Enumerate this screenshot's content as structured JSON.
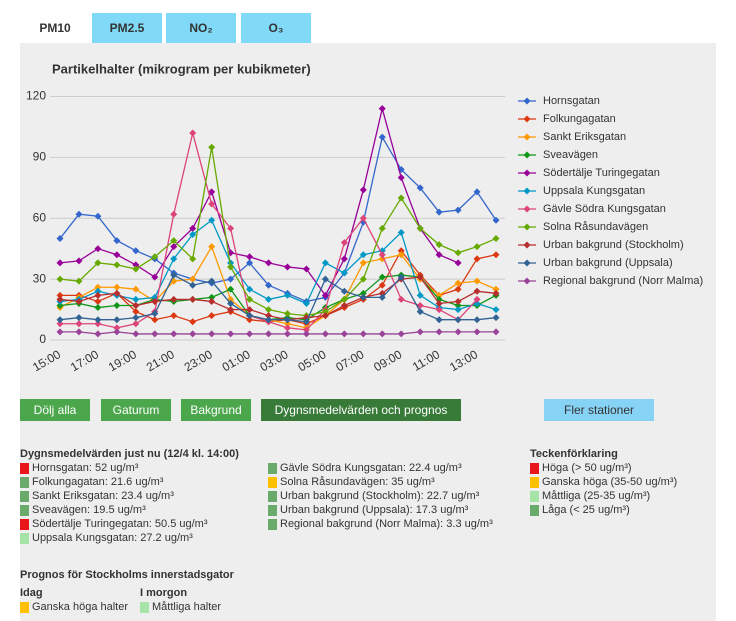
{
  "tabs": [
    "PM10",
    "PM2.5",
    "NO₂",
    "O₃"
  ],
  "chart_data": {
    "type": "line",
    "title": "Partikelhalter (mikrogram per kubikmeter)",
    "categories": [
      "15:00",
      null,
      "17:00",
      null,
      "19:00",
      null,
      "21:00",
      null,
      "23:00",
      null,
      "01:00",
      null,
      "03:00",
      null,
      "05:00",
      null,
      "07:00",
      null,
      "09:00",
      null,
      "11:00",
      null,
      "13:00",
      null
    ],
    "ylim": [
      0,
      120
    ],
    "yticks": [
      0,
      30,
      60,
      90,
      120
    ],
    "grid": true,
    "legend": "right",
    "series": [
      {
        "name": "Hornsgatan",
        "color": "#3366cc",
        "values": [
          50,
          62,
          61,
          49,
          44,
          40,
          33,
          30,
          28,
          30,
          38,
          27,
          23,
          19,
          21,
          33,
          58,
          100,
          84,
          75,
          63,
          64,
          73,
          59
        ]
      },
      {
        "name": "Folkungagatan",
        "color": "#dc3912",
        "values": [
          22,
          22,
          19,
          23,
          14,
          10,
          12,
          9,
          12,
          14,
          10,
          9,
          10,
          8,
          12,
          16,
          20,
          27,
          44,
          32,
          22,
          25,
          40,
          42
        ]
      },
      {
        "name": "Sankt Eriksgatan",
        "color": "#ff9900",
        "values": [
          16,
          21,
          26,
          26,
          25,
          19,
          29,
          30,
          46,
          20,
          12,
          10,
          8,
          6,
          12,
          20,
          38,
          40,
          42,
          30,
          22,
          28,
          29,
          25
        ]
      },
      {
        "name": "Sveavägen",
        "color": "#109618",
        "values": [
          17,
          18,
          16,
          17,
          17,
          20,
          19,
          20,
          21,
          25,
          12,
          10,
          11,
          10,
          16,
          20,
          23,
          31,
          32,
          31,
          20,
          17,
          17,
          22
        ]
      },
      {
        "name": "Södertälje Turingegatan",
        "color": "#990099",
        "values": [
          38,
          39,
          45,
          42,
          37,
          31,
          46,
          55,
          73,
          43,
          41,
          38,
          36,
          35,
          22,
          40,
          74,
          114,
          80,
          55,
          42,
          38,
          null,
          null
        ]
      },
      {
        "name": "Uppsala Kungsgatan",
        "color": "#0099c6",
        "values": [
          19,
          20,
          24,
          22,
          20,
          21,
          40,
          52,
          59,
          38,
          25,
          20,
          22,
          18,
          38,
          33,
          42,
          44,
          53,
          22,
          16,
          15,
          18,
          15
        ]
      },
      {
        "name": "Gävle Södra Kungsgatan",
        "color": "#dd4477",
        "values": [
          8,
          8,
          8,
          6,
          8,
          14,
          62,
          102,
          67,
          55,
          12,
          9,
          6,
          5,
          15,
          48,
          60,
          42,
          20,
          17,
          15,
          10,
          20,
          null
        ]
      },
      {
        "name": "Solna Råsundavägen",
        "color": "#66aa00",
        "values": [
          30,
          29,
          38,
          37,
          35,
          41,
          49,
          40,
          95,
          36,
          20,
          15,
          13,
          12,
          14,
          20,
          30,
          55,
          70,
          55,
          47,
          43,
          46,
          50
        ]
      },
      {
        "name": "Urban bakgrund (Stockholm)",
        "color": "#b82e2e",
        "values": [
          20,
          19,
          22,
          23,
          17,
          19,
          20,
          20,
          19,
          15,
          15,
          12,
          10,
          11,
          12,
          17,
          21,
          23,
          30,
          31,
          18,
          19,
          24,
          23
        ]
      },
      {
        "name": "Urban bakgrund (Uppsala)",
        "color": "#316395",
        "values": [
          10,
          11,
          10,
          10,
          11,
          13,
          32,
          27,
          29,
          18,
          12,
          10,
          10,
          9,
          30,
          24,
          21,
          21,
          31,
          14,
          10,
          10,
          10,
          11
        ]
      },
      {
        "name": "Regional bakgrund (Norr Malma)",
        "color": "#994499",
        "values": [
          4,
          4,
          3,
          4,
          3,
          3,
          3,
          3,
          3,
          3,
          3,
          3,
          3,
          3,
          3,
          3,
          3,
          3,
          3,
          4,
          4,
          4,
          4,
          4
        ]
      }
    ]
  },
  "buttons": [
    "Dölj alla",
    "Gaturum",
    "Bakgrund",
    "Dygnsmedelvärden och prognos",
    "Fler stationer"
  ],
  "current": {
    "title": "Dygnsmedelvärden just nu (12/4 kl. 14:00)",
    "items": [
      {
        "text": "Hornsgatan: 52 ug/m³",
        "color": "#e8161b"
      },
      {
        "text": "Folkungagatan: 21.6 ug/m³",
        "color": "#6aaa6a"
      },
      {
        "text": "Sankt Eriksgatan: 23.4 ug/m³",
        "color": "#6aaa6a"
      },
      {
        "text": "Sveavägen: 19.5 ug/m³",
        "color": "#6aaa6a"
      },
      {
        "text": "Södertälje Turingegatan: 50.5 ug/m³",
        "color": "#e8161b"
      },
      {
        "text": "Uppsala Kungsgatan: 27.2 ug/m³",
        "color": "#a6e3a6"
      },
      {
        "text": "Gävle Södra Kungsgatan: 22.4 ug/m³",
        "color": "#6aaa6a"
      },
      {
        "text": "Solna Råsundavägen: 35 ug/m³",
        "color": "#ffc000"
      },
      {
        "text": "Urban bakgrund (Stockholm): 22.7 ug/m³",
        "color": "#6aaa6a"
      },
      {
        "text": "Urban bakgrund (Uppsala): 17.3 ug/m³",
        "color": "#6aaa6a"
      },
      {
        "text": "Regional bakgrund (Norr Malma): 3.3 ug/m³",
        "color": "#6aaa6a"
      }
    ]
  },
  "key": {
    "title": "Teckenförklaring",
    "items": [
      {
        "text": "Höga (> 50 ug/m³)",
        "color": "#e8161b"
      },
      {
        "text": "Ganska höga (35-50 ug/m³)",
        "color": "#ffc000"
      },
      {
        "text": "Måttliga (25-35 ug/m³)",
        "color": "#a6e3a6"
      },
      {
        "text": "Låga (< 25 ug/m³)",
        "color": "#6aaa6a"
      }
    ]
  },
  "forecast": {
    "title": "Prognos för Stockholms innerstadsgator",
    "days": [
      {
        "day": "Idag",
        "text": "Ganska höga halter",
        "color": "#ffc000"
      },
      {
        "day": "I morgon",
        "text": "Måttliga halter",
        "color": "#a6e3a6"
      }
    ]
  }
}
